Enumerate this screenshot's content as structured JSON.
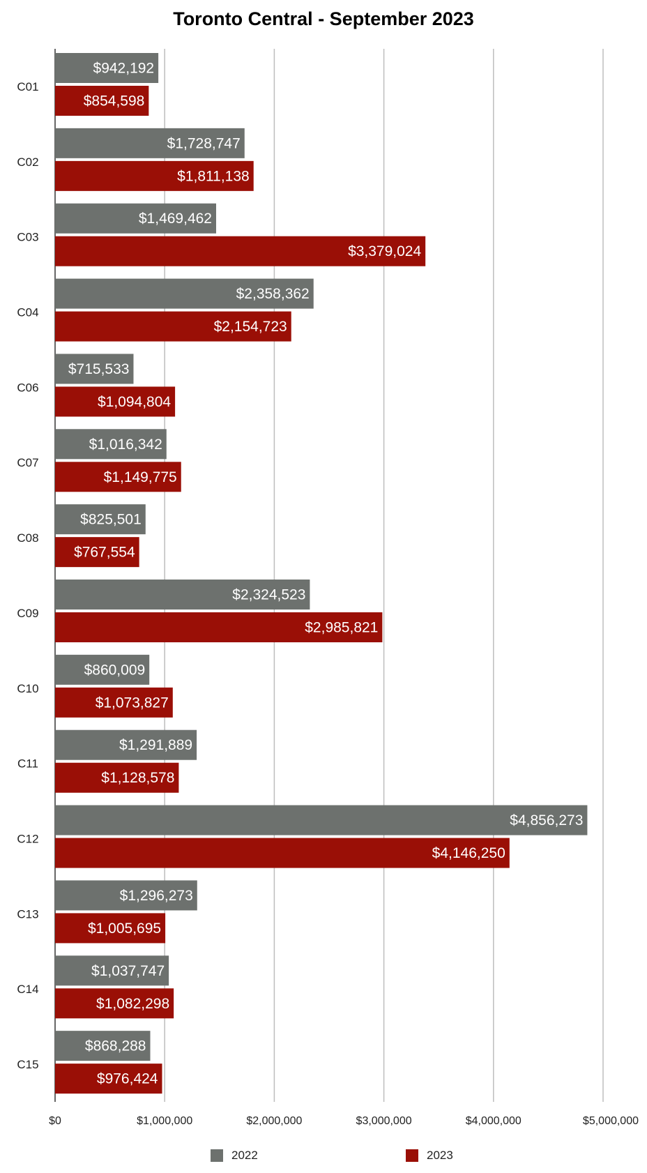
{
  "chart_data": {
    "type": "bar",
    "orientation": "horizontal",
    "title": "Toronto Central - September 2023",
    "xlabel": "",
    "ylabel": "",
    "xlim": [
      0,
      5000000
    ],
    "x_ticks": [
      "$0",
      "$1,000,000",
      "$2,000,000",
      "$3,000,000",
      "$4,000,000",
      "$5,000,000"
    ],
    "grid": "vertical",
    "legend_position": "bottom",
    "categories": [
      "C01",
      "C02",
      "C03",
      "C04",
      "C06",
      "C07",
      "C08",
      "C09",
      "C10",
      "C11",
      "C12",
      "C13",
      "C14",
      "C15"
    ],
    "series": [
      {
        "name": "2022",
        "color": "#6d716e",
        "values": [
          942192,
          1728747,
          1469462,
          2358362,
          715533,
          1016342,
          825501,
          2324523,
          860009,
          1291889,
          4856273,
          1296273,
          1037747,
          868288
        ],
        "labels": [
          "$942,192",
          "$1,728,747",
          "$1,469,462",
          "$2,358,362",
          "$715,533",
          "$1,016,342",
          "$825,501",
          "$2,324,523",
          "$860,009",
          "$1,291,889",
          "$4,856,273",
          "$1,296,273",
          "$1,037,747",
          "$868,288"
        ]
      },
      {
        "name": "2023",
        "color": "#9a0f06",
        "values": [
          854598,
          1811138,
          3379024,
          2154723,
          1094804,
          1149775,
          767554,
          2985821,
          1073827,
          1128578,
          4146250,
          1005695,
          1082298,
          976424
        ],
        "labels": [
          "$854,598",
          "$1,811,138",
          "$3,379,024",
          "$2,154,723",
          "$1,094,804",
          "$1,149,775",
          "$767,554",
          "$2,985,821",
          "$1,073,827",
          "$1,128,578",
          "$4,146,250",
          "$1,005,695",
          "$1,082,298",
          "$976,424"
        ]
      }
    ]
  }
}
